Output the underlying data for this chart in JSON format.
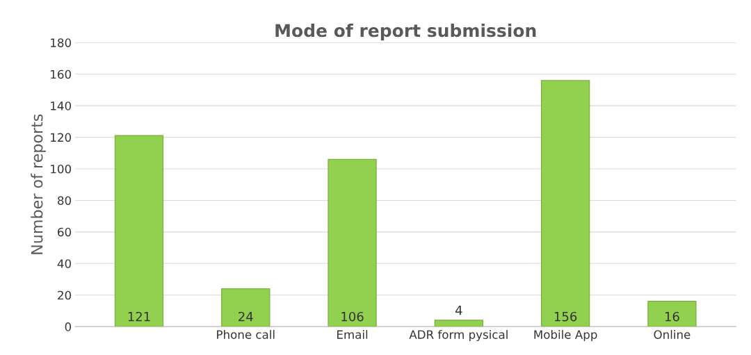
{
  "chart_data": {
    "type": "bar",
    "title": "Mode of report submission",
    "ylabel": "Number of reports",
    "categories": [
      null,
      "Phone call",
      "Email",
      "ADR form pysical",
      "Mobile App",
      "Online"
    ],
    "values": [
      121,
      24,
      106,
      4,
      156,
      16
    ],
    "color": "#92d050",
    "ylim": [
      0,
      180
    ],
    "yticks": [
      0,
      20,
      40,
      60,
      80,
      100,
      120,
      140,
      160,
      180
    ],
    "grid": "y",
    "data_labels": true
  }
}
